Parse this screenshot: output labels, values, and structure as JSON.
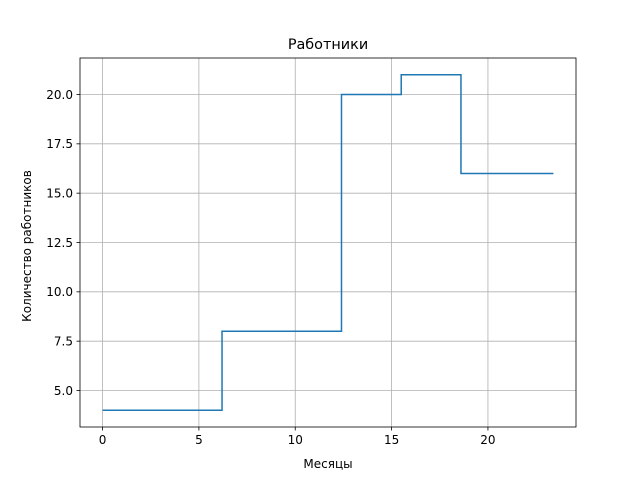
{
  "chart_data": {
    "type": "line",
    "drawstyle": "steps-post",
    "title": "Работники",
    "xlabel": "Месяцы",
    "ylabel": "Количество работников",
    "xlim": [
      -1.17,
      24.57
    ],
    "ylim": [
      3.15,
      21.85
    ],
    "grid": true,
    "line_color": "#1f77b4",
    "x_ticks": [
      0,
      5,
      10,
      15,
      20
    ],
    "x_tick_labels": [
      "0",
      "5",
      "10",
      "15",
      "20"
    ],
    "y_ticks": [
      5.0,
      7.5,
      10.0,
      12.5,
      15.0,
      17.5,
      20.0
    ],
    "y_tick_labels": [
      "5.0",
      "7.5",
      "10.0",
      "12.5",
      "15.0",
      "17.5",
      "20.0"
    ],
    "series": [
      {
        "x": [
          0,
          6.2,
          12.4,
          15.5,
          18.6,
          23.4
        ],
        "y": [
          4,
          8,
          20,
          21,
          16,
          16
        ]
      }
    ]
  }
}
